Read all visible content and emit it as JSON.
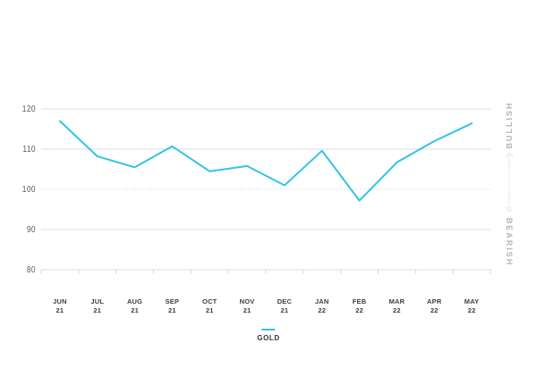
{
  "chart_data": {
    "type": "line",
    "title": "",
    "categories": [
      {
        "month": "JUN",
        "year": "21"
      },
      {
        "month": "JUL",
        "year": "21"
      },
      {
        "month": "AUG",
        "year": "21"
      },
      {
        "month": "SEP",
        "year": "21"
      },
      {
        "month": "OCT",
        "year": "21"
      },
      {
        "month": "NOV",
        "year": "21"
      },
      {
        "month": "DEC",
        "year": "21"
      },
      {
        "month": "JAN",
        "year": "22"
      },
      {
        "month": "FEB",
        "year": "22"
      },
      {
        "month": "MAR",
        "year": "22"
      },
      {
        "month": "APR",
        "year": "22"
      },
      {
        "month": "MAY",
        "year": "22"
      }
    ],
    "series": [
      {
        "name": "GOLD",
        "color": "#32c3e8",
        "values": [
          117.0,
          108.2,
          105.5,
          110.7,
          104.5,
          105.8,
          101.0,
          109.6,
          97.2,
          106.7,
          112.0,
          116.4
        ]
      }
    ],
    "ylim": [
      80,
      120
    ],
    "yticks": [
      80,
      90,
      100,
      110,
      120
    ],
    "dotted_gridline_at": 100,
    "grid": "horizontal",
    "legend_position": "bottom-center",
    "colors": {
      "gridline": "#dcdcdc",
      "dotted_gridline": "#cfcfcf",
      "axis_tick": "#d4d4d4",
      "y_label": "#595959",
      "x_label": "#3d3d3d",
      "background": "#ffffff"
    }
  },
  "legend": {
    "label": "GOLD"
  },
  "side_scale": {
    "top_label": "BULLISH",
    "bottom_label": "BEARISH",
    "arrow_color": "#c2c2c2"
  }
}
